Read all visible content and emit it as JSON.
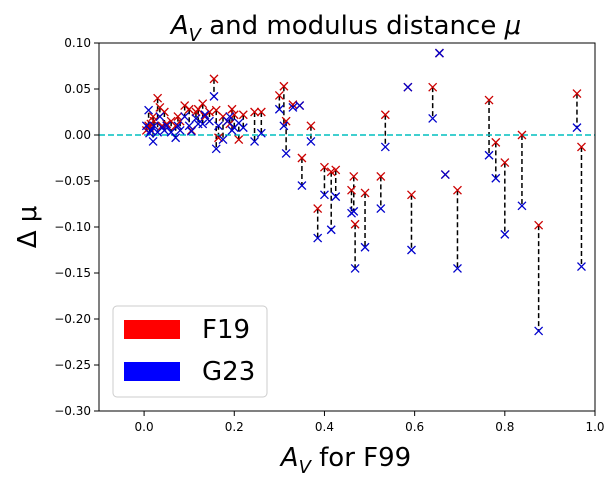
{
  "chart_data": {
    "type": "scatter",
    "title": "A_V and modulus distance μ",
    "title_parts": {
      "main": "A",
      "sub": "V",
      "rest": " and modulus distance ",
      "mu": "μ"
    },
    "xlabel": "A_V for F99",
    "xlabel_parts": {
      "main": "A",
      "sub": "V",
      "rest": " for F99"
    },
    "ylabel": "Δ μ",
    "xlim": [
      -0.1,
      1.0
    ],
    "ylim": [
      -0.3,
      0.1
    ],
    "xticks": [
      "0.0",
      "0.2",
      "0.4",
      "0.6",
      "0.8",
      "1.0"
    ],
    "xtick_values": [
      0.0,
      0.2,
      0.4,
      0.6,
      0.8,
      1.0
    ],
    "yticks": [
      "0.10",
      "0.05",
      "0.00",
      "−0.05",
      "−0.10",
      "−0.15",
      "−0.20",
      "−0.25",
      "−0.30"
    ],
    "ytick_values": [
      0.1,
      0.05,
      0.0,
      -0.05,
      -0.1,
      -0.15,
      -0.2,
      -0.25,
      -0.3
    ],
    "reference_line": {
      "y": 0.0,
      "color": "#00bfbf",
      "style": "dashed"
    },
    "connector_color": "#000000",
    "legend": {
      "position": "lower-left"
    },
    "series": [
      {
        "name": "F19",
        "color": "#ff0000",
        "marker_color": "#cc0000"
      },
      {
        "name": "G23",
        "color": "#0000ff",
        "marker_color": "#0000cc"
      }
    ],
    "x": [
      0.005,
      0.01,
      0.012,
      0.015,
      0.02,
      0.022,
      0.03,
      0.035,
      0.04,
      0.045,
      0.05,
      0.06,
      0.07,
      0.075,
      0.08,
      0.09,
      0.1,
      0.105,
      0.115,
      0.12,
      0.13,
      0.135,
      0.145,
      0.155,
      0.16,
      0.165,
      0.175,
      0.185,
      0.19,
      0.195,
      0.2,
      0.21,
      0.22,
      0.245,
      0.26,
      0.3,
      0.31,
      0.315,
      0.33,
      0.345,
      0.35,
      0.37,
      0.385,
      0.4,
      0.415,
      0.425,
      0.46,
      0.465,
      0.468,
      0.49,
      0.525,
      0.535,
      0.585,
      0.593,
      0.64,
      0.655,
      0.668,
      0.695,
      0.765,
      0.78,
      0.8,
      0.838,
      0.875,
      0.96,
      0.97
    ],
    "f19": [
      0.005,
      0.01,
      0.008,
      0.012,
      0.02,
      0.015,
      0.04,
      0.03,
      0.01,
      0.025,
      0.012,
      0.015,
      0.01,
      0.02,
      0.015,
      0.032,
      0.028,
      0.005,
      0.025,
      0.028,
      0.034,
      0.02,
      0.025,
      0.061,
      0.027,
      -0.003,
      0.02,
      0.015,
      0.012,
      0.028,
      0.022,
      -0.005,
      0.022,
      0.025,
      0.025,
      0.043,
      0.053,
      0.015,
      0.033,
      0.032,
      -0.025,
      0.01,
      -0.08,
      -0.035,
      -0.04,
      -0.038,
      -0.06,
      -0.045,
      -0.097,
      -0.063,
      -0.045,
      0.022,
      0.052,
      -0.065,
      0.052,
      0.089,
      -0.043,
      -0.06,
      0.038,
      -0.008,
      -0.03,
      0.0,
      -0.098,
      0.045,
      -0.013
    ],
    "g23": [
      0.01,
      0.027,
      0.002,
      0.005,
      -0.007,
      0.01,
      0.003,
      0.02,
      0.008,
      0.005,
      0.01,
      0.003,
      -0.003,
      0.01,
      0.005,
      0.02,
      0.01,
      0.004,
      0.018,
      0.012,
      0.012,
      0.022,
      0.015,
      0.042,
      -0.015,
      0.01,
      -0.005,
      0.015,
      0.02,
      0.005,
      0.008,
      0.013,
      0.008,
      -0.007,
      0.002,
      0.028,
      0.01,
      -0.02,
      0.03,
      0.032,
      -0.055,
      -0.007,
      -0.112,
      -0.065,
      -0.103,
      -0.067,
      -0.085,
      -0.083,
      -0.145,
      -0.122,
      -0.08,
      -0.013,
      0.052,
      -0.125,
      0.018,
      0.089,
      -0.043,
      -0.145,
      -0.022,
      -0.047,
      -0.108,
      -0.077,
      -0.213,
      0.008,
      -0.143
    ]
  }
}
